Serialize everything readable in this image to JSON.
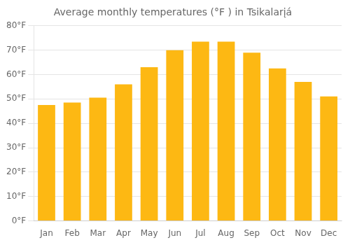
{
  "chart_data": {
    "type": "bar",
    "title": "Average monthly temperatures (°F ) in Tsikalarįá",
    "categories": [
      "Jan",
      "Feb",
      "Mar",
      "Apr",
      "May",
      "Jun",
      "Jul",
      "Aug",
      "Sep",
      "Oct",
      "Nov",
      "Dec"
    ],
    "values": [
      47.5,
      48.5,
      50.5,
      56.0,
      63.0,
      70.0,
      73.5,
      73.5,
      69.0,
      62.5,
      57.0,
      51.0
    ],
    "color": "#FDB813",
    "ylim": [
      0,
      80
    ],
    "yticks": [
      {
        "value": 0,
        "label": "0°F"
      },
      {
        "value": 10,
        "label": "10°F"
      },
      {
        "value": 20,
        "label": "20°F"
      },
      {
        "value": 30,
        "label": "30°F"
      },
      {
        "value": 40,
        "label": "40°F"
      },
      {
        "value": 50,
        "label": "50°F"
      },
      {
        "value": 60,
        "label": "60°F"
      },
      {
        "value": 70,
        "label": "70°F"
      },
      {
        "value": 80,
        "label": "80°F"
      }
    ],
    "grid": true
  }
}
